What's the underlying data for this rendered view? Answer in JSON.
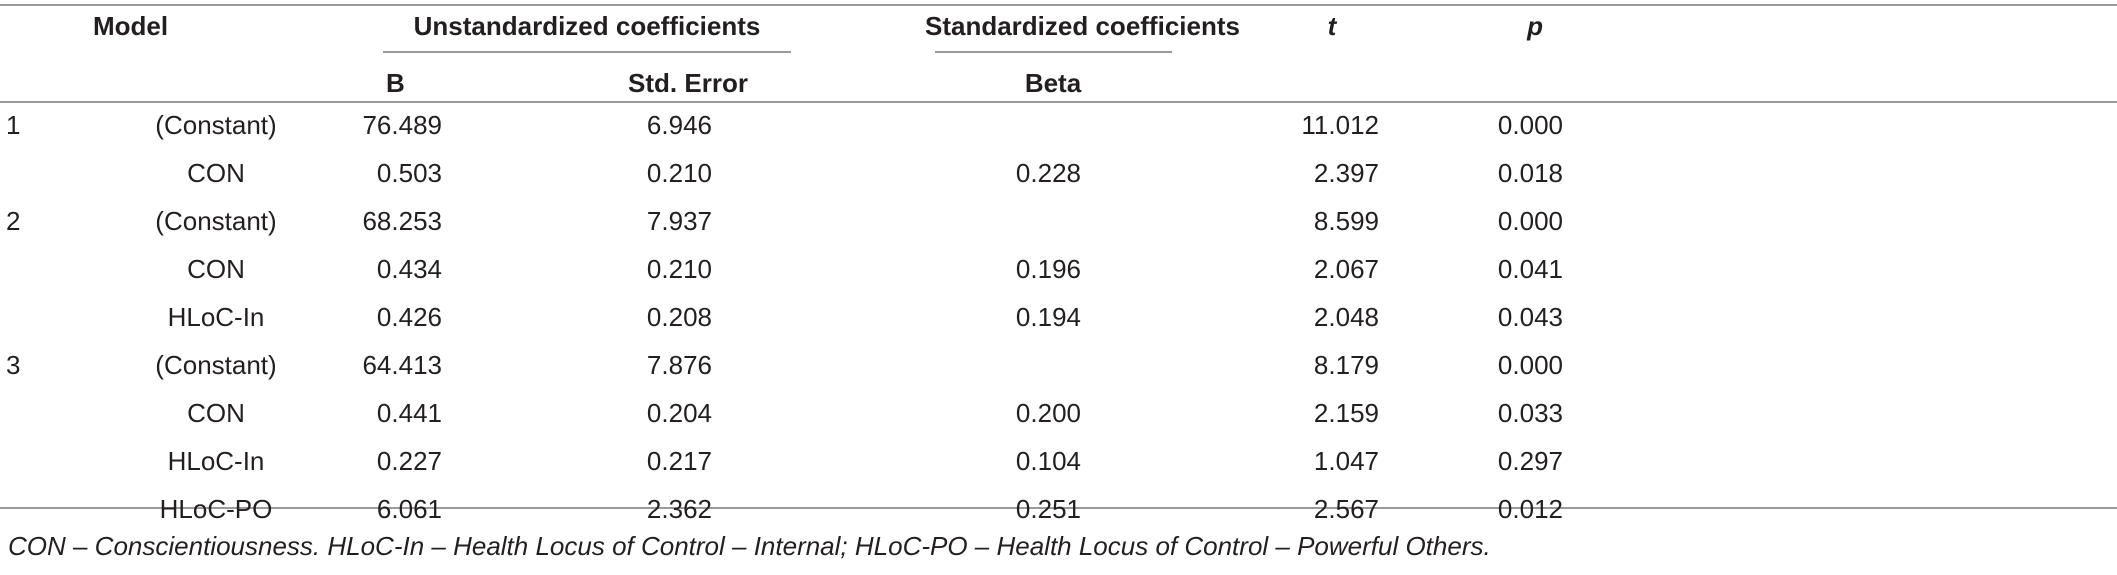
{
  "table": {
    "headers": {
      "model": "Model",
      "unstandardized": "Unstandardized coefficients",
      "standardized": "Standardized coefficients",
      "t": "t",
      "p": "p",
      "b": "B",
      "std_error": "Std. Error",
      "beta": "Beta"
    },
    "rows": [
      {
        "model": "1",
        "predictor": "(Constant)",
        "b": "76.489",
        "se": "6.946",
        "beta": "",
        "t": "11.012",
        "p": "0.000"
      },
      {
        "model": "",
        "predictor": "CON",
        "b": "0.503",
        "se": "0.210",
        "beta": "0.228",
        "t": "2.397",
        "p": "0.018"
      },
      {
        "model": "2",
        "predictor": "(Constant)",
        "b": "68.253",
        "se": "7.937",
        "beta": "",
        "t": "8.599",
        "p": "0.000"
      },
      {
        "model": "",
        "predictor": "CON",
        "b": "0.434",
        "se": "0.210",
        "beta": "0.196",
        "t": "2.067",
        "p": "0.041"
      },
      {
        "model": "",
        "predictor": "HLoC-In",
        "b": "0.426",
        "se": "0.208",
        "beta": "0.194",
        "t": "2.048",
        "p": "0.043"
      },
      {
        "model": "3",
        "predictor": "(Constant)",
        "b": "64.413",
        "se": "7.876",
        "beta": "",
        "t": "8.179",
        "p": "0.000"
      },
      {
        "model": "",
        "predictor": "CON",
        "b": "0.441",
        "se": "0.204",
        "beta": "0.200",
        "t": "2.159",
        "p": "0.033"
      },
      {
        "model": "",
        "predictor": "HLoC-In",
        "b": "0.227",
        "se": "0.217",
        "beta": "0.104",
        "t": "1.047",
        "p": "0.297"
      },
      {
        "model": "",
        "predictor": "HLoC-PO",
        "b": "6.061",
        "se": "2.362",
        "beta": "0.251",
        "t": "2.567",
        "p": "0.012"
      }
    ],
    "footnote": "CON – Conscientiousness. HLoC-In – Health Locus of Control – Internal; HLoC-PO – Health Locus of Control – Powerful Others."
  }
}
